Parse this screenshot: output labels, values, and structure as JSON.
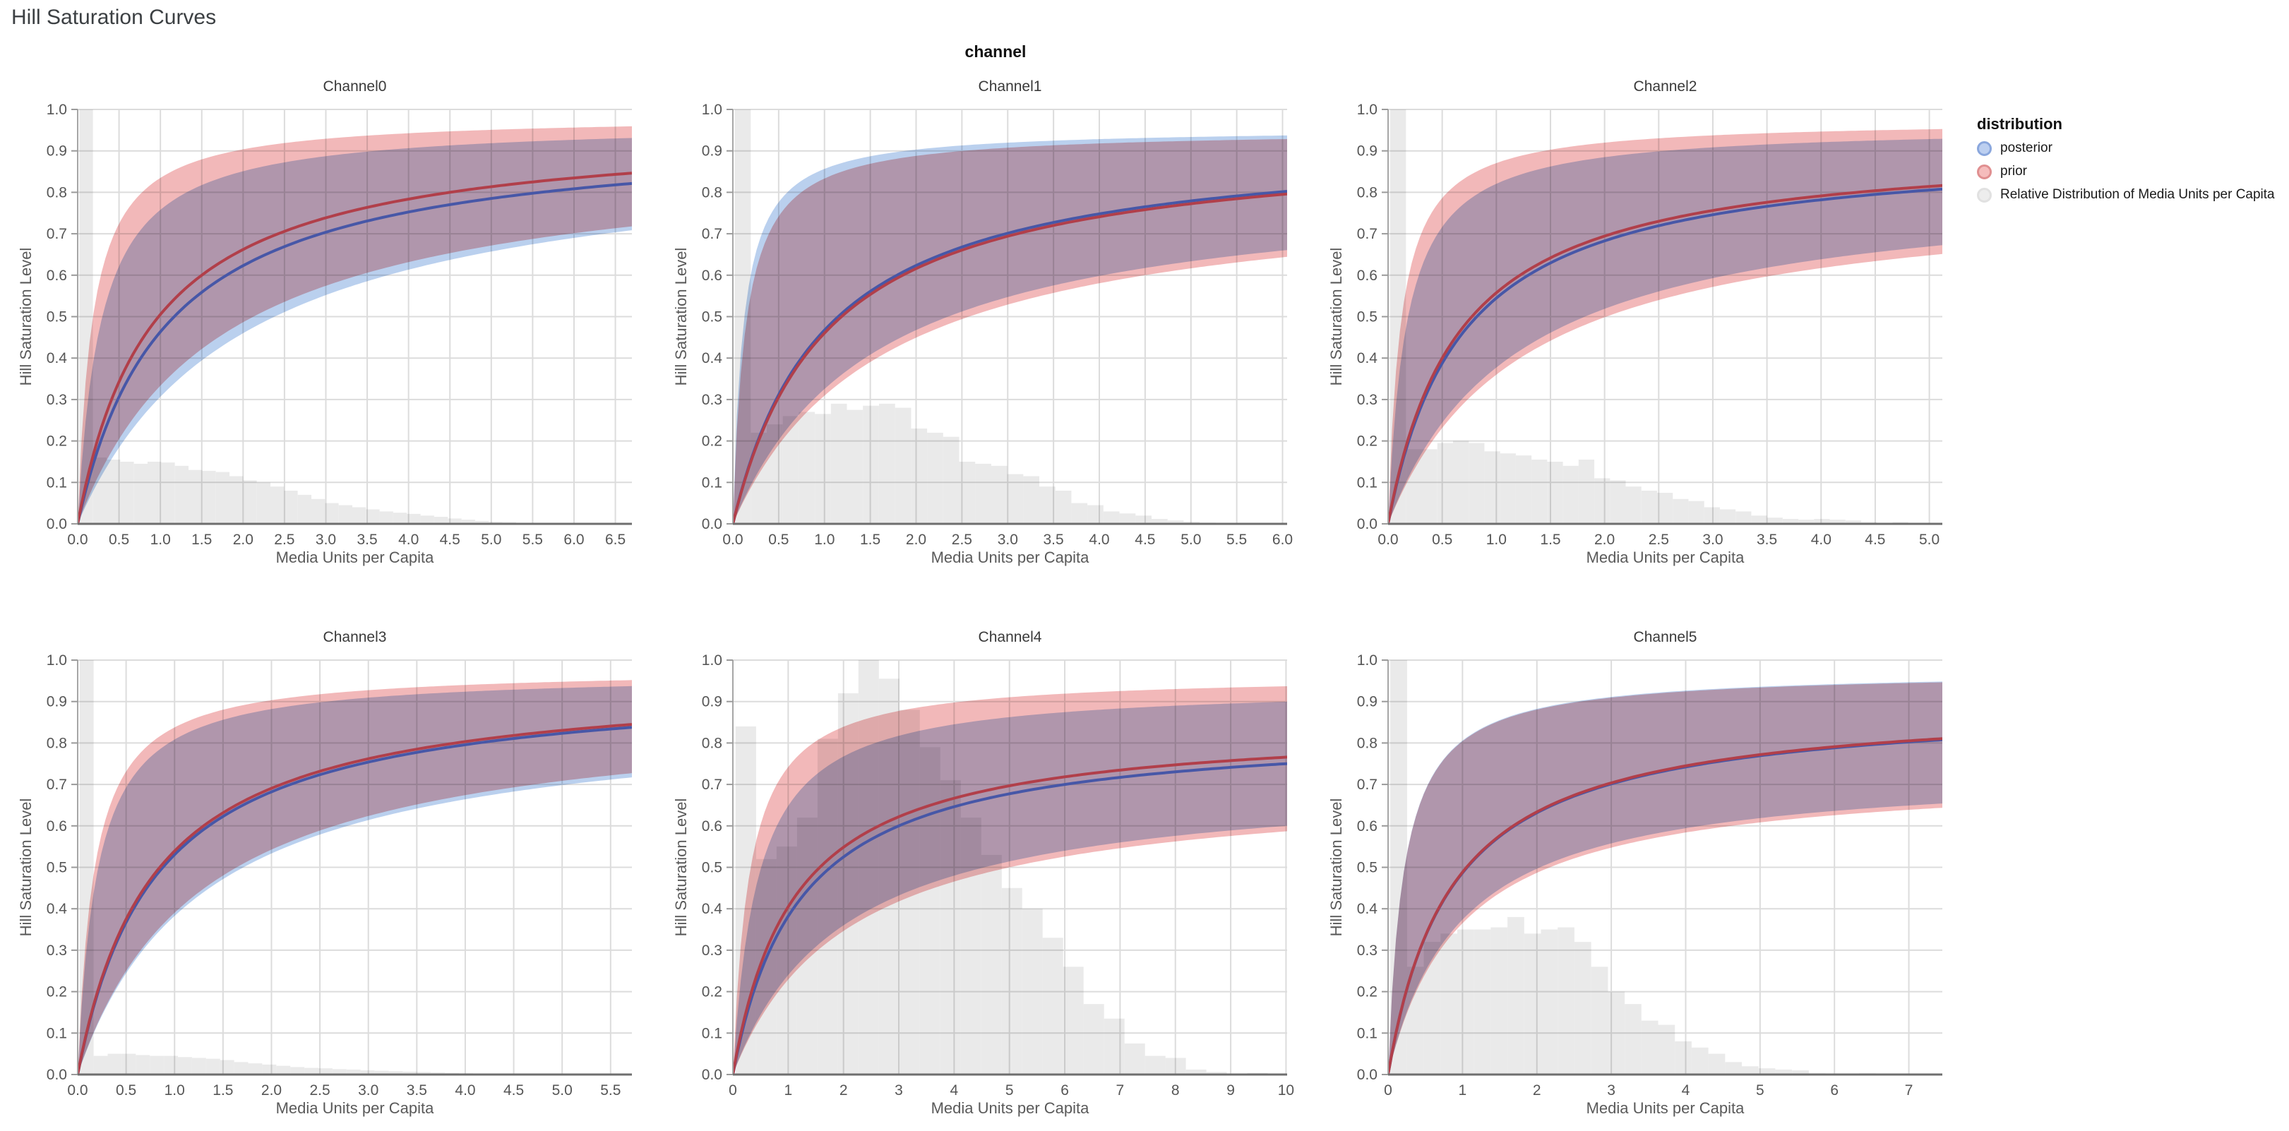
{
  "page_title": "Hill Saturation Curves",
  "facet_header": "channel",
  "axes": {
    "x_title": "Media Units per Capita",
    "y_title": "Hill Saturation Level",
    "y_ticks": [
      "0.0",
      "0.1",
      "0.2",
      "0.3",
      "0.4",
      "0.5",
      "0.6",
      "0.7",
      "0.8",
      "0.9",
      "1.0"
    ]
  },
  "legend": {
    "title": "distribution",
    "items": [
      {
        "label": "posterior",
        "fill": "#bccff0",
        "stroke": "#8aa7dd"
      },
      {
        "label": "prior",
        "fill": "#f5bcbc",
        "stroke": "#e08f90"
      },
      {
        "label": "Relative Distribution of Media Units per Capita",
        "fill": "#ededed",
        "stroke": "#e1e1e1"
      }
    ]
  },
  "colors": {
    "posterior_line": "#4757a7",
    "prior_line": "#b13f4a",
    "posterior_band": "#bad0ee",
    "prior_band": "#f2b8b9",
    "histogram": "#eaeaea",
    "grid": "#dcdcdc",
    "axis_domain": "#6e6e6e",
    "axis_left": "#a6a6a6",
    "tick_label": "#565656"
  },
  "chart_data": [
    {
      "type": "line",
      "facet": "Channel0",
      "x_max": 6.7,
      "y_domain": [
        0,
        1
      ],
      "x_ticks": [
        "0.0",
        "0.5",
        "1.0",
        "1.5",
        "2.0",
        "2.5",
        "3.0",
        "3.5",
        "4.0",
        "4.5",
        "5.0",
        "5.5",
        "6.0",
        "6.5"
      ],
      "posterior": {
        "median_hill": {
          "g": 0.95,
          "k": 1.05
        },
        "hi_hill": {
          "g": 0.97,
          "k": 0.28
        },
        "lo_hill": {
          "g": 0.92,
          "k": 2.0
        },
        "y_at_xmax": 0.82
      },
      "prior": {
        "median_hill": {
          "g": 0.96,
          "k": 0.9
        },
        "hi_hill": {
          "g": 0.985,
          "k": 0.18
        },
        "lo_hill": {
          "g": 0.9,
          "k": 1.7
        },
        "y_at_xmax": 0.85
      },
      "histogram": {
        "bin_start": 0.02,
        "bin_width": 0.165,
        "heights": [
          1.0,
          0.16,
          0.155,
          0.15,
          0.145,
          0.15,
          0.148,
          0.14,
          0.13,
          0.128,
          0.125,
          0.115,
          0.105,
          0.1,
          0.09,
          0.08,
          0.07,
          0.06,
          0.05,
          0.045,
          0.04,
          0.035,
          0.03,
          0.027,
          0.024,
          0.02,
          0.017,
          0.013,
          0.01,
          0.007,
          0.005,
          0.004,
          0.002
        ]
      }
    },
    {
      "type": "line",
      "facet": "Channel1",
      "x_max": 6.05,
      "y_domain": [
        0,
        1
      ],
      "x_ticks": [
        "0.0",
        "0.5",
        "1.0",
        "1.5",
        "2.0",
        "2.5",
        "3.0",
        "3.5",
        "4.0",
        "4.5",
        "5.0",
        "5.5",
        "6.0"
      ],
      "posterior": {
        "median_hill": {
          "g": 0.935,
          "k": 1.0
        },
        "hi_hill": {
          "g": 0.955,
          "k": 0.115
        },
        "lo_hill": {
          "g": 0.83,
          "k": 1.55
        },
        "y_at_xmax": 0.8
      },
      "prior": {
        "median_hill": {
          "g": 0.93,
          "k": 1.02
        },
        "hi_hill": {
          "g": 0.95,
          "k": 0.14
        },
        "lo_hill": {
          "g": 0.82,
          "k": 1.65
        },
        "y_at_xmax": 0.79
      },
      "histogram": {
        "bin_start": 0.02,
        "bin_width": 0.175,
        "heights": [
          1.0,
          0.22,
          0.24,
          0.26,
          0.27,
          0.265,
          0.29,
          0.275,
          0.285,
          0.29,
          0.28,
          0.23,
          0.22,
          0.21,
          0.15,
          0.145,
          0.14,
          0.12,
          0.115,
          0.09,
          0.08,
          0.05,
          0.045,
          0.03,
          0.025,
          0.02,
          0.012,
          0.008,
          0.005,
          0.003,
          0.002
        ]
      }
    },
    {
      "type": "line",
      "facet": "Channel2",
      "x_max": 5.12,
      "y_domain": [
        0,
        1
      ],
      "x_ticks": [
        "0.0",
        "0.5",
        "1.0",
        "1.5",
        "2.0",
        "2.5",
        "3.0",
        "3.5",
        "4.0",
        "4.5",
        "5.0"
      ],
      "posterior": {
        "median_hill": {
          "g": 0.915,
          "k": 0.68
        },
        "hi_hill": {
          "g": 0.96,
          "k": 0.17
        },
        "lo_hill": {
          "g": 0.83,
          "k": 1.2
        },
        "y_at_xmax": 0.81
      },
      "prior": {
        "median_hill": {
          "g": 0.92,
          "k": 0.65
        },
        "hi_hill": {
          "g": 0.975,
          "k": 0.12
        },
        "lo_hill": {
          "g": 0.81,
          "k": 1.25
        },
        "y_at_xmax": 0.82
      },
      "histogram": {
        "bin_start": 0.02,
        "bin_width": 0.145,
        "heights": [
          1.0,
          0.18,
          0.18,
          0.195,
          0.2,
          0.195,
          0.175,
          0.17,
          0.165,
          0.155,
          0.15,
          0.14,
          0.155,
          0.11,
          0.105,
          0.09,
          0.08,
          0.075,
          0.06,
          0.055,
          0.04,
          0.035,
          0.03,
          0.02,
          0.015,
          0.012,
          0.01,
          0.012,
          0.01,
          0.008,
          0.004,
          0.002,
          0.004
        ]
      }
    },
    {
      "type": "line",
      "facet": "Channel3",
      "x_max": 5.72,
      "y_domain": [
        0,
        1
      ],
      "x_ticks": [
        "0.0",
        "0.5",
        "1.0",
        "1.5",
        "2.0",
        "2.5",
        "3.0",
        "3.5",
        "4.0",
        "4.5",
        "5.0",
        "5.5"
      ],
      "posterior": {
        "median_hill": {
          "g": 0.955,
          "k": 0.8
        },
        "hi_hill": {
          "g": 0.97,
          "k": 0.2
        },
        "lo_hill": {
          "g": 0.88,
          "k": 1.3
        },
        "y_at_xmax": 0.84
      },
      "prior": {
        "median_hill": {
          "g": 0.96,
          "k": 0.78
        },
        "hi_hill": {
          "g": 0.98,
          "k": 0.17
        },
        "lo_hill": {
          "g": 0.89,
          "k": 1.28
        },
        "y_at_xmax": 0.84
      },
      "histogram": {
        "bin_start": 0.02,
        "bin_width": 0.145,
        "heights": [
          1.0,
          0.045,
          0.05,
          0.05,
          0.047,
          0.045,
          0.045,
          0.042,
          0.04,
          0.038,
          0.035,
          0.03,
          0.027,
          0.024,
          0.021,
          0.018,
          0.016,
          0.015,
          0.013,
          0.012,
          0.01,
          0.009,
          0.008,
          0.007,
          0.006,
          0.005,
          0.004,
          0.003,
          0.002,
          0.002,
          0.001,
          0.001
        ]
      }
    },
    {
      "type": "line",
      "facet": "Channel4",
      "x_max": 10.02,
      "y_domain": [
        0,
        1
      ],
      "x_ticks": [
        "0",
        "1",
        "2",
        "3",
        "4",
        "5",
        "6",
        "7",
        "8",
        "9",
        "10"
      ],
      "posterior": {
        "median_hill": {
          "g": 0.84,
          "k": 1.2
        },
        "hi_hill": {
          "g": 0.94,
          "k": 0.45
        },
        "lo_hill": {
          "g": 0.72,
          "k": 2.0
        },
        "y_at_xmax": 0.75
      },
      "prior": {
        "median_hill": {
          "g": 0.85,
          "k": 1.1
        },
        "hi_hill": {
          "g": 0.965,
          "k": 0.3
        },
        "lo_hill": {
          "g": 0.71,
          "k": 2.1
        },
        "y_at_xmax": 0.77
      },
      "histogram": {
        "bin_start": 0.05,
        "bin_width": 0.37,
        "heights": [
          0.84,
          0.52,
          0.55,
          0.62,
          0.81,
          0.92,
          1.0,
          0.955,
          0.88,
          0.79,
          0.71,
          0.62,
          0.53,
          0.45,
          0.4,
          0.33,
          0.26,
          0.17,
          0.135,
          0.075,
          0.045,
          0.04,
          0.012,
          0.006,
          0.002,
          0.004
        ]
      }
    },
    {
      "type": "line",
      "facet": "Channel5",
      "x_max": 7.45,
      "y_domain": [
        0,
        1
      ],
      "x_ticks": [
        "0",
        "1",
        "2",
        "3",
        "4",
        "5",
        "6",
        "7"
      ],
      "posterior": {
        "median_hill": {
          "g": 0.9,
          "k": 0.85
        },
        "hi_hill": {
          "g": 0.975,
          "k": 0.21
        },
        "lo_hill": {
          "g": 0.74,
          "k": 0.98
        },
        "y_at_xmax": 0.8
      },
      "prior": {
        "median_hill": {
          "g": 0.903,
          "k": 0.85
        },
        "hi_hill": {
          "g": 0.973,
          "k": 0.21
        },
        "lo_hill": {
          "g": 0.73,
          "k": 1.0
        },
        "y_at_xmax": 0.8
      },
      "histogram": {
        "bin_start": 0.03,
        "bin_width": 0.225,
        "heights": [
          1.0,
          0.26,
          0.32,
          0.34,
          0.35,
          0.35,
          0.355,
          0.38,
          0.34,
          0.35,
          0.355,
          0.32,
          0.26,
          0.2,
          0.17,
          0.13,
          0.12,
          0.08,
          0.065,
          0.05,
          0.03,
          0.02,
          0.015,
          0.012,
          0.01,
          0.003,
          0.002,
          0.001,
          0.003
        ]
      }
    }
  ]
}
